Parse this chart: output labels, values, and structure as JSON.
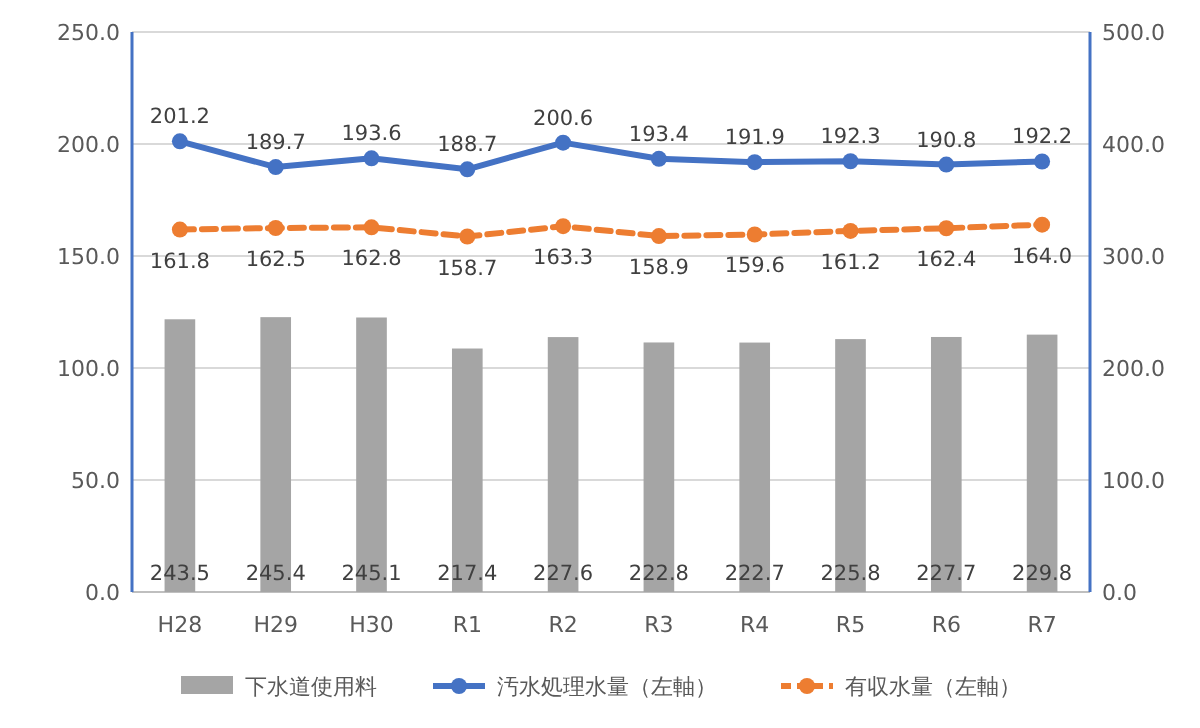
{
  "chart_data": {
    "type": "bar",
    "categories": [
      "H28",
      "H29",
      "H30",
      "R1",
      "R2",
      "R3",
      "R4",
      "R5",
      "R6",
      "R7"
    ],
    "series": [
      {
        "name": "下水道使用料",
        "axis": "y2",
        "color": "#a5a5a5",
        "values": [
          243.5,
          245.4,
          245.1,
          217.4,
          227.6,
          222.8,
          222.7,
          225.8,
          227.7,
          229.8
        ],
        "value_labels": [
          "243.5",
          "245.4",
          "245.1",
          "217.4",
          "227.6",
          "222.8",
          "222.7",
          "225.8",
          "227.7",
          "229.8"
        ]
      },
      {
        "name": "汚水処理水量（左軸）",
        "type": "line",
        "axis": "y",
        "color": "#4472c4",
        "marker": "circle",
        "line_style": "solid",
        "values": [
          201.2,
          189.7,
          193.6,
          188.7,
          200.6,
          193.4,
          191.9,
          192.3,
          190.8,
          192.2
        ],
        "value_labels": [
          "201.2",
          "189.7",
          "193.6",
          "188.7",
          "200.6",
          "193.4",
          "191.9",
          "192.3",
          "190.8",
          "192.2"
        ]
      },
      {
        "name": "有収水量（左軸）",
        "type": "line",
        "axis": "y",
        "color": "#ed7d31",
        "marker": "circle",
        "line_style": "dashed",
        "values": [
          161.8,
          162.5,
          162.8,
          158.7,
          163.3,
          158.9,
          159.6,
          161.2,
          162.4,
          164.0
        ],
        "value_labels": [
          "161.8",
          "162.5",
          "162.8",
          "158.7",
          "163.3",
          "158.9",
          "159.6",
          "161.2",
          "162.4",
          "164.0"
        ]
      }
    ],
    "ylim": [
      0,
      250
    ],
    "yticks": [
      {
        "value": 0,
        "label": "0.0"
      },
      {
        "value": 50,
        "label": "50.0"
      },
      {
        "value": 100,
        "label": "100.0"
      },
      {
        "value": 150,
        "label": "150.0"
      },
      {
        "value": 200,
        "label": "200.0"
      },
      {
        "value": 250,
        "label": "250.0"
      }
    ],
    "y2lim": [
      0,
      500
    ],
    "y2ticks": [
      {
        "value": 0,
        "label": "0.0"
      },
      {
        "value": 100,
        "label": "100.0"
      },
      {
        "value": 200,
        "label": "200.0"
      },
      {
        "value": 300,
        "label": "300.0"
      },
      {
        "value": 400,
        "label": "400.0"
      },
      {
        "value": 500,
        "label": "500.0"
      }
    ],
    "grid": "y",
    "legend": "bottom"
  }
}
